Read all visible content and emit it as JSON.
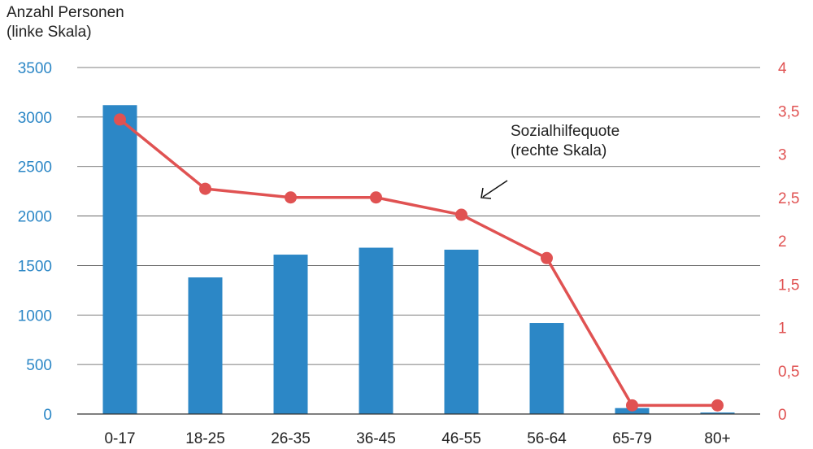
{
  "chart_data": {
    "type": "bar",
    "categories": [
      "0-17",
      "18-25",
      "26-35",
      "36-45",
      "46-55",
      "56-64",
      "65-79",
      "80+"
    ],
    "series": [
      {
        "type": "bar",
        "axis": "left",
        "color": "#2C87C6",
        "values": [
          3120,
          1380,
          1610,
          1680,
          1660,
          920,
          60,
          15
        ]
      },
      {
        "type": "line",
        "axis": "right",
        "name": "Sozialhilfequote (rechte Skala)",
        "color": "#E05252",
        "values": [
          3.4,
          2.6,
          2.5,
          2.5,
          2.3,
          1.8,
          0.1,
          0.1
        ]
      }
    ],
    "y_left": {
      "title_line1": "Anzahl Personen",
      "title_line2": "(linke Skala)",
      "ylim": [
        0,
        3500
      ],
      "ticks": [
        0,
        500,
        1000,
        1500,
        2000,
        2500,
        3000,
        3500
      ],
      "tick_labels": [
        "0",
        "500",
        "1000",
        "1500",
        "2000",
        "2500",
        "3000",
        "3500"
      ],
      "color": "#2C87C6"
    },
    "y_right": {
      "ylim": [
        0,
        4
      ],
      "ticks": [
        0,
        0.5,
        1,
        1.5,
        2,
        2.5,
        3,
        3.5,
        4
      ],
      "tick_labels": [
        "0",
        "0,5",
        "1",
        "1,5",
        "2",
        "2,5",
        "3",
        "3,5",
        "4"
      ],
      "color": "#E05252"
    },
    "annotation": {
      "line1": "Sozialhilfequote",
      "line2": "(rechte Skala)"
    },
    "grid": true
  }
}
